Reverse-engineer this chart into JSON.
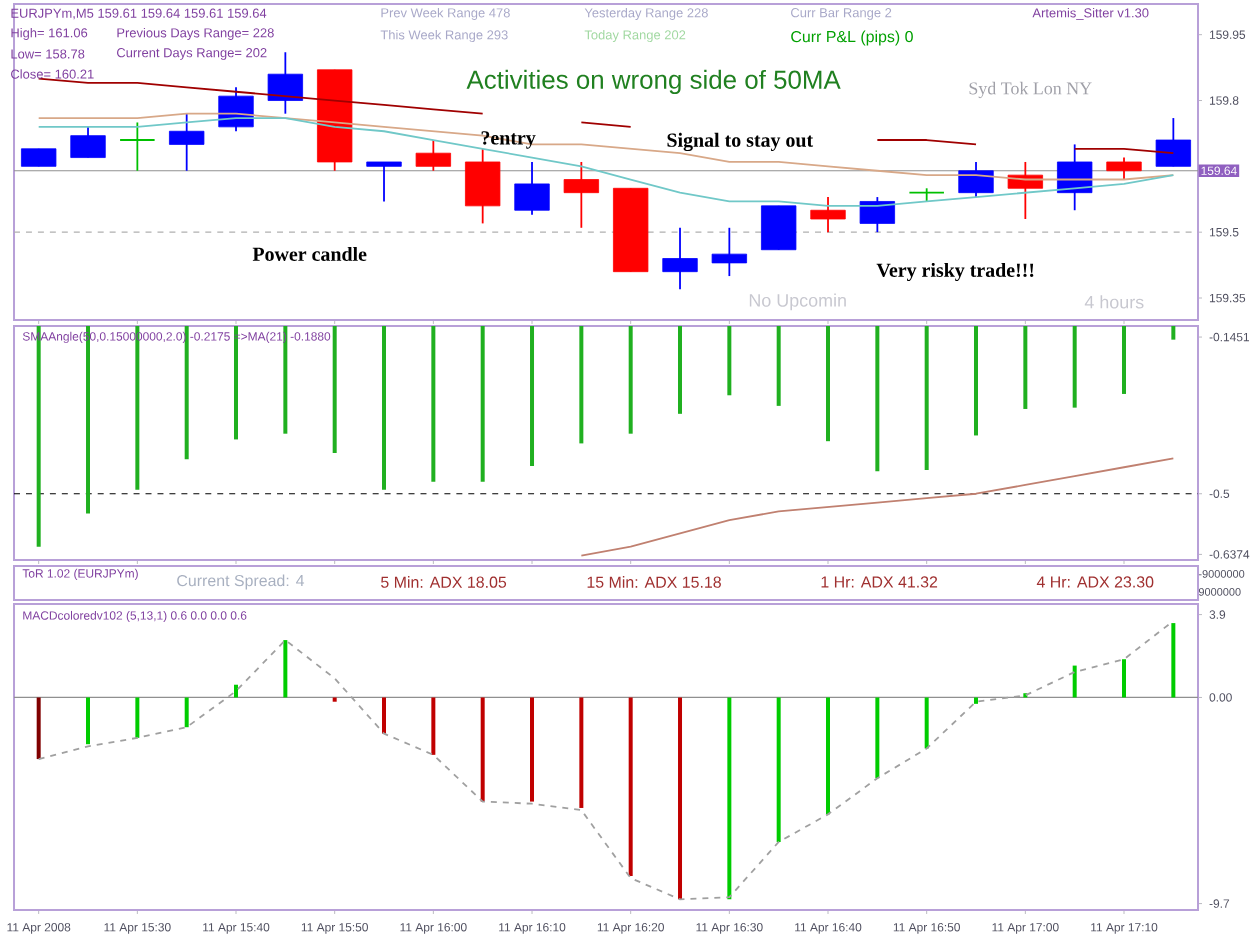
{
  "chart_data": [
    {
      "type": "candlestick",
      "categories": [
        null,
        null,
        null,
        null,
        null,
        null,
        null,
        null,
        null,
        null,
        null,
        null,
        null,
        null,
        null,
        null,
        null,
        null,
        null,
        null,
        null,
        null,
        null,
        null
      ],
      "tick_labels": "y",
      "ohlc": [
        [
          159.65,
          159.69,
          159.65,
          159.69
        ],
        [
          159.67,
          159.74,
          159.67,
          159.72
        ],
        [
          159.71,
          159.75,
          159.64,
          159.71
        ],
        [
          159.7,
          159.77,
          159.64,
          159.73
        ],
        [
          159.74,
          159.83,
          159.73,
          159.81
        ],
        [
          159.8,
          159.91,
          159.77,
          159.86
        ],
        [
          159.87,
          159.87,
          159.64,
          159.66
        ],
        [
          159.65,
          159.66,
          159.57,
          159.66
        ],
        [
          159.68,
          159.71,
          159.64,
          159.65
        ],
        [
          159.66,
          159.69,
          159.52,
          159.56
        ],
        [
          159.55,
          159.66,
          159.54,
          159.61
        ],
        [
          159.62,
          159.66,
          159.51,
          159.59
        ],
        [
          159.6,
          159.6,
          159.41,
          159.41
        ],
        [
          159.41,
          159.51,
          159.37,
          159.44
        ],
        [
          159.43,
          159.51,
          159.4,
          159.45
        ],
        [
          159.46,
          159.56,
          159.46,
          159.56
        ],
        [
          159.55,
          159.58,
          159.5,
          159.53
        ],
        [
          159.52,
          159.58,
          159.5,
          159.57
        ],
        [
          159.59,
          159.6,
          159.57,
          159.59
        ],
        [
          159.59,
          159.66,
          159.58,
          159.64
        ],
        [
          159.63,
          159.66,
          159.53,
          159.6
        ],
        [
          159.59,
          159.7,
          159.55,
          159.66
        ],
        [
          159.66,
          159.67,
          159.62,
          159.64
        ],
        [
          159.65,
          159.76,
          159.65,
          159.71
        ]
      ],
      "colors": [
        "#0000ff",
        "#0000ff",
        "#00c000",
        "#0000ff",
        "#0000ff",
        "#0000ff",
        "#ff0000",
        "#0000ff",
        "#ff0000",
        "#ff0000",
        "#0000ff",
        "#ff0000",
        "#ff0000",
        "#0000ff",
        "#0000ff",
        "#0000ff",
        "#ff0000",
        "#0000ff",
        "#00c000",
        "#0000ff",
        "#ff0000",
        "#0000ff",
        "#ff0000",
        "#0000ff"
      ],
      "series": [
        {
          "type": "line",
          "color": "#a00000",
          "values": [
            159.85,
            159.84,
            159.84,
            159.83,
            159.82,
            159.81,
            159.8,
            159.79,
            159.78,
            159.77,
            null,
            159.75,
            159.74,
            null,
            null,
            null,
            null,
            159.71,
            159.71,
            159.7,
            null,
            159.69,
            159.69,
            159.68
          ]
        },
        {
          "type": "line",
          "color": "#d8a888",
          "values": [
            159.76,
            159.76,
            159.76,
            159.77,
            159.77,
            159.76,
            159.75,
            159.74,
            159.73,
            159.72,
            159.7,
            159.7,
            159.69,
            159.68,
            159.66,
            159.66,
            159.65,
            159.64,
            159.63,
            159.63,
            159.62,
            159.62,
            159.62,
            159.63
          ]
        },
        {
          "type": "line",
          "color": "#70c8c8",
          "values": [
            159.74,
            159.74,
            159.74,
            159.75,
            159.76,
            159.76,
            159.74,
            159.73,
            159.71,
            159.69,
            159.67,
            159.65,
            159.62,
            159.59,
            159.57,
            159.57,
            159.56,
            159.56,
            159.57,
            159.58,
            159.59,
            159.6,
            159.61,
            159.63
          ]
        }
      ],
      "ylim": [
        159.3,
        160.02
      ],
      "yticks": [
        159.35,
        159.5,
        159.8,
        159.95
      ],
      "ref_lines": [
        {
          "axis": "y",
          "value": 159.64,
          "label": "159.64",
          "color": "#909090"
        },
        {
          "axis": "y",
          "value": 159.5,
          "color": "#b0b0b0",
          "line_style": "dashed"
        }
      ],
      "annotations": [
        "EURJPYm,M5  159.61 159.64 159.61 159.64",
        "High= 161.06",
        "Low= 158.78",
        "Close= 160.21",
        "Previous Days Range= 228",
        "Current Days Range= 202",
        "Prev Week Range  478",
        "This Week Range  293",
        "Yesterday Range  228",
        "Today Range  202",
        "Curr Bar Range  2",
        "Curr P&L (pips)  0",
        "Artemis_Sitter v1.30",
        "Activities on wrong side of 50MA",
        "?entry",
        "Signal to stay out",
        "Power candle",
        "Very risky trade!!!",
        "Syd  Tok  Lon  NY",
        "No Upcomin",
        "4 hours"
      ]
    },
    {
      "type": "bar",
      "title": "SMAAngle(50,0.15000000,2.0) -0.2175  =>MA(21) -0.1880",
      "categories": [
        null,
        null,
        null,
        null,
        null,
        null,
        null,
        null,
        null,
        null,
        null,
        null,
        null,
        null,
        null,
        null,
        null,
        null,
        null,
        null,
        null,
        null,
        null,
        null
      ],
      "tick_labels": "y",
      "series": [
        {
          "type": "bar",
          "color": "#20b020",
          "values": [
            -0.62,
            -0.545,
            -0.491,
            -0.422,
            -0.377,
            -0.364,
            -0.408,
            -0.491,
            -0.473,
            -0.473,
            -0.437,
            -0.386,
            -0.364,
            -0.319,
            -0.277,
            -0.301,
            -0.381,
            -0.449,
            -0.446,
            -0.368,
            -0.308,
            -0.305,
            -0.274,
            -0.151
          ]
        },
        {
          "type": "line",
          "color": "#c08070",
          "values": [
            null,
            null,
            null,
            null,
            null,
            null,
            null,
            null,
            null,
            null,
            null,
            -0.64,
            -0.62,
            -0.59,
            -0.56,
            -0.54,
            -0.53,
            -0.52,
            -0.51,
            -0.5,
            -0.48,
            -0.46,
            -0.44,
            -0.42
          ]
        }
      ],
      "ylim": [
        -0.65,
        -0.12
      ],
      "yticks": [
        -0.6374,
        -0.5,
        -0.1451
      ],
      "ref_lines": [
        {
          "axis": "y",
          "value": -0.5,
          "color": "#000000",
          "line_style": "dashed"
        }
      ]
    },
    {
      "type": "other",
      "title": "ToR 1.02 (EURJPYm)",
      "annotations": [
        "Current Spread: 4",
        "5 Min: ADX 18.05",
        "15 Min: ADX 15.18",
        "1 Hr: ADX 41.32",
        "4 Hr: ADX 23.30",
        "-9000000",
        "9000000"
      ]
    },
    {
      "type": "bar",
      "title": "MACDcoloredv102 (5,13,1) 0.6 0.0 0.0 0.6",
      "categories": [
        "11 Apr 2008",
        null,
        "11 Apr 15:30",
        null,
        "11 Apr 15:40",
        null,
        "11 Apr 15:50",
        null,
        "11 Apr 16:00",
        null,
        "11 Apr 16:10",
        null,
        "11 Apr 16:20",
        null,
        "11 Apr 16:30",
        null,
        "11 Apr 16:40",
        null,
        "11 Apr 16:50",
        null,
        "11 Apr 17:00",
        null,
        "11 Apr 17:10",
        null
      ],
      "series": [
        {
          "type": "bar",
          "colors": [
            "#800000",
            "#00cc00",
            "#00cc00",
            "#00cc00",
            "#00cc00",
            "#00cc00",
            "#c00000",
            "#c00000",
            "#c00000",
            "#c00000",
            "#c00000",
            "#c00000",
            "#c00000",
            "#c00000",
            "#00cc00",
            "#00cc00",
            "#00cc00",
            "#00cc00",
            "#00cc00",
            "#00cc00",
            "#00cc00",
            "#00cc00",
            "#00cc00",
            "#00cc00"
          ],
          "values": [
            -2.9,
            -2.2,
            -1.9,
            -1.4,
            0.6,
            2.7,
            -0.2,
            -1.7,
            -2.7,
            -4.9,
            -4.9,
            -5.2,
            -8.4,
            -9.5,
            -9.5,
            -6.8,
            -5.5,
            -3.8,
            -2.4,
            -0.3,
            0.2,
            1.5,
            1.8,
            3.5
          ]
        },
        {
          "type": "line",
          "color": "#a0a0a0",
          "line_style": "dashed",
          "values": [
            -2.9,
            -2.3,
            -1.9,
            -1.4,
            0.3,
            2.7,
            0.9,
            -1.7,
            -2.7,
            -4.9,
            -5.0,
            -5.3,
            -8.5,
            -9.5,
            -9.4,
            -6.8,
            -5.5,
            -3.8,
            -2.4,
            -0.2,
            0.1,
            1.2,
            1.8,
            3.6
          ]
        }
      ],
      "ylim": [
        -10.0,
        4.4
      ],
      "yticks": [
        -9.7,
        {
          "value": 0,
          "label": "0.00"
        },
        3.9
      ],
      "ref_lines": [
        {
          "axis": "y",
          "value": 0,
          "color": "#909090"
        }
      ]
    }
  ]
}
